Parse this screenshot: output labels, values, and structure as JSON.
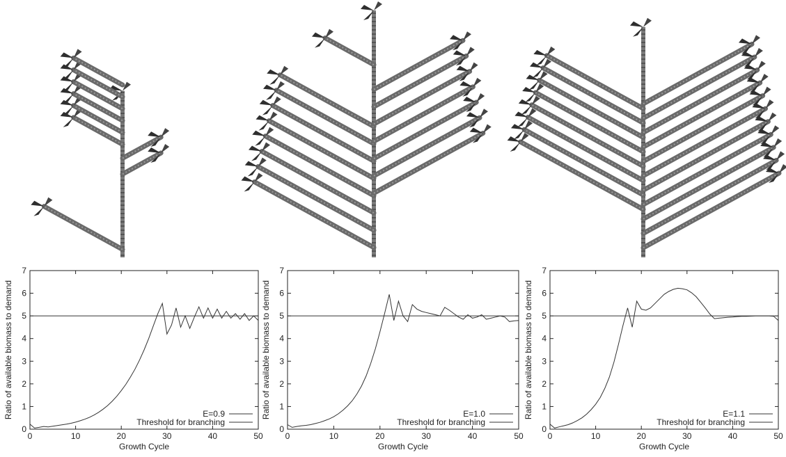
{
  "colors": {
    "line": "#333333",
    "stem": "#6f6f6f",
    "leaf": "#2e2e2e",
    "background": "#ffffff"
  },
  "trees": [
    {
      "name": "tree-e09",
      "stemTop": 0.84,
      "levels": [
        {
          "y": 0.96,
          "side": "left",
          "len": 0.88,
          "leaves": true
        },
        {
          "y": 0.58,
          "side": "right",
          "len": 0.6,
          "leaves": true
        },
        {
          "y": 0.5,
          "side": "right",
          "len": 0.6,
          "leaves": true
        },
        {
          "y": 0.43,
          "side": "left",
          "len": 0.55,
          "leaves": true
        },
        {
          "y": 0.37,
          "side": "left",
          "len": 0.55,
          "leaves": true
        },
        {
          "y": 0.31,
          "side": "left",
          "len": 0.55,
          "leaves": true
        },
        {
          "y": 0.25,
          "side": "left",
          "len": 0.55,
          "leaves": true
        },
        {
          "y": 0.19,
          "side": "left",
          "len": 0.55,
          "leaves": true
        },
        {
          "y": 0.13,
          "side": "left",
          "len": 0.55,
          "leaves": true
        }
      ]
    },
    {
      "name": "tree-e10",
      "stemTop": 1.0,
      "levels": [
        {
          "y": 0.96,
          "side": "left",
          "len": 0.98,
          "leaves": true
        },
        {
          "y": 0.89,
          "side": "left",
          "len": 0.95,
          "leaves": true
        },
        {
          "y": 0.82,
          "side": "left",
          "len": 0.92,
          "leaves": true
        },
        {
          "y": 0.75,
          "side": "left",
          "len": 0.89,
          "leaves": true
        },
        {
          "y": 0.68,
          "side": "left",
          "len": 0.86,
          "leaves": true
        },
        {
          "y": 0.61,
          "side": "left",
          "len": 0.83,
          "leaves": true
        },
        {
          "y": 0.54,
          "side": "left",
          "len": 0.8,
          "leaves": true
        },
        {
          "y": 0.47,
          "side": "left",
          "len": 0.77,
          "leaves": true
        },
        {
          "y": 0.74,
          "side": "right",
          "len": 0.98,
          "leaves": true
        },
        {
          "y": 0.67,
          "side": "right",
          "len": 0.95,
          "leaves": true
        },
        {
          "y": 0.6,
          "side": "right",
          "len": 0.92,
          "leaves": true
        },
        {
          "y": 0.53,
          "side": "right",
          "len": 0.89,
          "leaves": true
        },
        {
          "y": 0.46,
          "side": "right",
          "len": 0.86,
          "leaves": true
        },
        {
          "y": 0.39,
          "side": "right",
          "len": 0.83,
          "leaves": true
        },
        {
          "y": 0.32,
          "side": "right",
          "len": 0.8,
          "leaves": true
        },
        {
          "y": 0.22,
          "side": "left",
          "len": 0.4,
          "leaves": true
        }
      ]
    },
    {
      "name": "tree-e11",
      "stemTop": 0.96,
      "levels": [
        {
          "y": 0.8,
          "side": "left",
          "len": 0.98,
          "leaves": true
        },
        {
          "y": 0.74,
          "side": "left",
          "len": 0.95,
          "leaves": true
        },
        {
          "y": 0.68,
          "side": "left",
          "len": 0.92,
          "leaves": true
        },
        {
          "y": 0.62,
          "side": "left",
          "len": 0.89,
          "leaves": true
        },
        {
          "y": 0.56,
          "side": "left",
          "len": 0.86,
          "leaves": true
        },
        {
          "y": 0.5,
          "side": "left",
          "len": 0.83,
          "leaves": true
        },
        {
          "y": 0.44,
          "side": "left",
          "len": 0.8,
          "leaves": true
        },
        {
          "y": 0.38,
          "side": "left",
          "len": 0.77,
          "leaves": true
        },
        {
          "y": 0.96,
          "side": "right",
          "len": 1.0,
          "leaves": true
        },
        {
          "y": 0.9,
          "side": "right",
          "len": 0.98,
          "leaves": true
        },
        {
          "y": 0.84,
          "side": "right",
          "len": 0.96,
          "leaves": true
        },
        {
          "y": 0.78,
          "side": "right",
          "len": 0.94,
          "leaves": true
        },
        {
          "y": 0.72,
          "side": "right",
          "len": 0.92,
          "leaves": true
        },
        {
          "y": 0.66,
          "side": "right",
          "len": 0.9,
          "leaves": true
        },
        {
          "y": 0.6,
          "side": "right",
          "len": 0.88,
          "leaves": true
        },
        {
          "y": 0.54,
          "side": "right",
          "len": 0.86,
          "leaves": true
        },
        {
          "y": 0.48,
          "side": "right",
          "len": 0.84,
          "leaves": true
        },
        {
          "y": 0.42,
          "side": "right",
          "len": 0.82,
          "leaves": true
        },
        {
          "y": 0.36,
          "side": "right",
          "len": 0.8,
          "leaves": true
        }
      ]
    }
  ],
  "chart_data": [
    {
      "type": "line",
      "title": "",
      "xlabel": "Growth Cycle",
      "ylabel": "Ratio of available biomass to demand",
      "xlim": [
        0,
        50
      ],
      "ylim": [
        0,
        7
      ],
      "xticks": [
        0,
        10,
        20,
        30,
        40,
        50
      ],
      "yticks": [
        0,
        1,
        2,
        3,
        4,
        5,
        6,
        7
      ],
      "legend_position": "bottom-right",
      "series": [
        {
          "name": "E=0.9",
          "x": [
            0,
            1,
            2,
            3,
            4,
            5,
            6,
            7,
            8,
            9,
            10,
            11,
            12,
            13,
            14,
            15,
            16,
            17,
            18,
            19,
            20,
            21,
            22,
            23,
            24,
            25,
            26,
            27,
            28,
            29,
            30,
            31,
            32,
            33,
            34,
            35,
            36,
            37,
            38,
            39,
            40,
            41,
            42,
            43,
            44,
            45,
            46,
            47,
            48,
            49,
            50
          ],
          "y": [
            0.22,
            0.05,
            0.08,
            0.12,
            0.1,
            0.13,
            0.16,
            0.19,
            0.22,
            0.26,
            0.31,
            0.37,
            0.44,
            0.52,
            0.62,
            0.74,
            0.88,
            1.04,
            1.23,
            1.45,
            1.7,
            1.98,
            2.3,
            2.65,
            3.05,
            3.5,
            4.0,
            4.55,
            5.1,
            5.55,
            4.2,
            4.6,
            5.35,
            4.5,
            5.0,
            4.45,
            4.95,
            5.4,
            4.9,
            5.35,
            4.9,
            5.3,
            4.9,
            5.2,
            4.9,
            5.1,
            4.85,
            5.1,
            4.8,
            5.0,
            4.8
          ]
        },
        {
          "name": "Threshold for branching",
          "x": [
            0,
            50
          ],
          "y": [
            5,
            5
          ]
        }
      ]
    },
    {
      "type": "line",
      "title": "",
      "xlabel": "Growth Cycle",
      "ylabel": "Ratio of available biomass to demand",
      "xlim": [
        0,
        50
      ],
      "ylim": [
        0,
        7
      ],
      "xticks": [
        0,
        10,
        20,
        30,
        40,
        50
      ],
      "yticks": [
        0,
        1,
        2,
        3,
        4,
        5,
        6,
        7
      ],
      "legend_position": "bottom-right",
      "series": [
        {
          "name": "E=1.0",
          "x": [
            0,
            1,
            2,
            3,
            4,
            5,
            6,
            7,
            8,
            9,
            10,
            11,
            12,
            13,
            14,
            15,
            16,
            17,
            18,
            19,
            20,
            21,
            22,
            23,
            24,
            25,
            26,
            27,
            28,
            29,
            30,
            31,
            32,
            33,
            34,
            35,
            36,
            37,
            38,
            39,
            40,
            41,
            42,
            43,
            44,
            45,
            46,
            47,
            48,
            49,
            50
          ],
          "y": [
            0.2,
            0.08,
            0.12,
            0.15,
            0.17,
            0.2,
            0.25,
            0.3,
            0.37,
            0.45,
            0.55,
            0.68,
            0.84,
            1.03,
            1.26,
            1.55,
            1.9,
            2.35,
            2.9,
            3.55,
            4.3,
            5.1,
            5.95,
            4.8,
            5.65,
            5.0,
            4.75,
            5.5,
            5.3,
            5.2,
            5.15,
            5.1,
            5.05,
            5.0,
            5.38,
            5.25,
            5.1,
            4.95,
            4.85,
            5.05,
            4.9,
            4.95,
            5.05,
            4.85,
            4.9,
            4.95,
            5.0,
            4.95,
            4.75,
            4.78,
            4.8
          ]
        },
        {
          "name": "Threshold for branching",
          "x": [
            0,
            50
          ],
          "y": [
            5,
            5
          ]
        }
      ]
    },
    {
      "type": "line",
      "title": "",
      "xlabel": "Growth Cycle",
      "ylabel": "Ratio of available biomass to demand",
      "xlim": [
        0,
        50
      ],
      "ylim": [
        0,
        7
      ],
      "xticks": [
        0,
        10,
        20,
        30,
        40,
        50
      ],
      "yticks": [
        0,
        1,
        2,
        3,
        4,
        5,
        6,
        7
      ],
      "legend_position": "bottom-right",
      "series": [
        {
          "name": "E=1.1",
          "x": [
            0,
            1,
            2,
            3,
            4,
            5,
            6,
            7,
            8,
            9,
            10,
            11,
            12,
            13,
            14,
            15,
            16,
            17,
            18,
            19,
            20,
            21,
            22,
            23,
            24,
            25,
            26,
            27,
            28,
            29,
            30,
            31,
            32,
            33,
            34,
            35,
            36,
            37,
            38,
            39,
            40,
            41,
            42,
            43,
            44,
            45,
            46,
            47,
            48,
            49,
            50
          ],
          "y": [
            0.22,
            0.05,
            0.1,
            0.15,
            0.2,
            0.28,
            0.38,
            0.5,
            0.66,
            0.86,
            1.1,
            1.4,
            1.8,
            2.3,
            2.95,
            3.75,
            4.6,
            5.35,
            4.5,
            5.65,
            5.3,
            5.25,
            5.35,
            5.55,
            5.75,
            5.95,
            6.08,
            6.17,
            6.22,
            6.2,
            6.15,
            6.02,
            5.85,
            5.6,
            5.35,
            5.08,
            4.88,
            4.9,
            4.92,
            4.94,
            4.95,
            4.97,
            4.98,
            4.98,
            4.99,
            5.0,
            5.0,
            5.0,
            5.0,
            4.98,
            4.8
          ]
        },
        {
          "name": "Threshold for branching",
          "x": [
            0,
            50
          ],
          "y": [
            5,
            5
          ]
        }
      ]
    }
  ]
}
